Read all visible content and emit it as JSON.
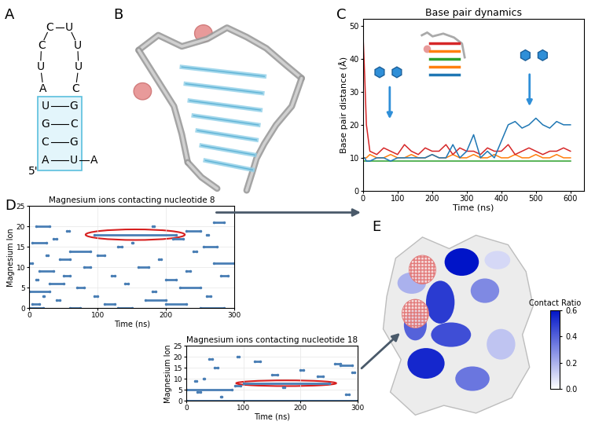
{
  "panel_labels": [
    "A",
    "B",
    "C",
    "D",
    "E"
  ],
  "secondary_structure": {
    "five_prime": "5'",
    "stem_left": [
      "A",
      "C",
      "G",
      "U"
    ],
    "loop": [
      "A",
      "U",
      "C",
      "C",
      "U",
      "U",
      "U",
      "C"
    ],
    "stem_right": [
      "G",
      "C",
      "G",
      "U"
    ],
    "tail": [
      "A"
    ]
  },
  "chart_data": [
    {
      "type": "line",
      "title": "Base pair dynamics",
      "xlabel": "Time (ns)",
      "ylabel": "Base pair distance (Å)",
      "x": [
        0,
        5,
        10,
        20,
        40,
        60,
        80,
        100,
        120,
        140,
        160,
        180,
        200,
        220,
        240,
        260,
        280,
        300,
        320,
        340,
        360,
        380,
        400,
        420,
        440,
        460,
        480,
        500,
        520,
        540,
        560,
        580,
        600
      ],
      "series": [
        {
          "color": "#2ca02c",
          "values": [
            9,
            9,
            9,
            9,
            9,
            9,
            9,
            9,
            9,
            9,
            9,
            9,
            9,
            9,
            9,
            9,
            9,
            9,
            9,
            9,
            9,
            9,
            9,
            9,
            9,
            9,
            9,
            9,
            9,
            9,
            9,
            9,
            9
          ]
        },
        {
          "color": "#ff7f0e",
          "values": [
            10,
            10,
            10,
            11,
            10,
            10,
            11,
            10,
            10,
            11,
            10,
            10,
            11,
            10,
            10,
            11,
            10,
            10,
            11,
            10,
            10,
            11,
            10,
            10,
            11,
            10,
            10,
            11,
            10,
            10,
            11,
            10,
            10
          ]
        },
        {
          "color": "#d62728",
          "values": [
            48,
            35,
            20,
            12,
            11,
            13,
            12,
            11,
            14,
            12,
            11,
            13,
            12,
            12,
            14,
            11,
            13,
            12,
            12,
            11,
            13,
            12,
            12,
            14,
            11,
            12,
            13,
            12,
            11,
            12,
            12,
            13,
            12
          ]
        },
        {
          "color": "#1f77b4",
          "values": [
            10,
            10,
            9,
            9,
            10,
            10,
            9,
            10,
            10,
            10,
            10,
            10,
            11,
            10,
            10,
            14,
            10,
            12,
            17,
            10,
            12,
            10,
            15,
            20,
            21,
            19,
            20,
            22,
            20,
            19,
            21,
            20,
            20
          ]
        }
      ],
      "xlim": [
        0,
        640
      ],
      "ylim": [
        0,
        52
      ],
      "xticks": [
        0,
        100,
        200,
        300,
        400,
        500,
        600
      ],
      "yticks": [
        0,
        10,
        20,
        30,
        40,
        50
      ]
    },
    {
      "type": "raster",
      "title": "Magnesium ions contacting nucleotide 8",
      "xlabel": "Time (ns)",
      "ylabel": "Magnesium Ion",
      "color": "#4a7fb5",
      "contacts": [
        [
          0,
          0,
          20
        ],
        [
          0,
          60,
          75
        ],
        [
          0,
          130,
          150
        ],
        [
          0,
          250,
          285
        ],
        [
          1,
          5,
          15
        ],
        [
          1,
          110,
          125
        ],
        [
          1,
          200,
          230
        ],
        [
          2,
          40,
          45
        ],
        [
          2,
          170,
          200
        ],
        [
          3,
          20,
          22
        ],
        [
          3,
          95,
          100
        ],
        [
          3,
          260,
          265
        ],
        [
          4,
          0,
          30
        ],
        [
          4,
          180,
          185
        ],
        [
          5,
          70,
          80
        ],
        [
          5,
          220,
          250
        ],
        [
          6,
          30,
          50
        ],
        [
          6,
          140,
          145
        ],
        [
          7,
          10,
          12
        ],
        [
          7,
          200,
          215
        ],
        [
          8,
          50,
          60
        ],
        [
          8,
          120,
          125
        ],
        [
          8,
          280,
          290
        ],
        [
          9,
          15,
          35
        ],
        [
          9,
          230,
          235
        ],
        [
          10,
          80,
          90
        ],
        [
          10,
          160,
          175
        ],
        [
          11,
          0,
          5
        ],
        [
          11,
          270,
          300
        ],
        [
          12,
          45,
          60
        ],
        [
          12,
          190,
          193
        ],
        [
          13,
          25,
          27
        ],
        [
          13,
          100,
          110
        ],
        [
          14,
          60,
          90
        ],
        [
          14,
          240,
          245
        ],
        [
          15,
          130,
          135
        ],
        [
          15,
          255,
          275
        ],
        [
          16,
          5,
          25
        ],
        [
          16,
          150,
          152
        ],
        [
          17,
          35,
          40
        ],
        [
          17,
          210,
          225
        ],
        [
          18,
          95,
          215
        ],
        [
          18,
          260,
          262
        ],
        [
          19,
          55,
          58
        ],
        [
          19,
          230,
          250
        ],
        [
          20,
          10,
          30
        ],
        [
          20,
          180,
          182
        ],
        [
          21,
          270,
          285
        ]
      ],
      "highlight": {
        "ion": 18,
        "start": 95,
        "end": 215
      },
      "xlim": [
        0,
        300
      ],
      "ylim": [
        0,
        25
      ],
      "xticks": [
        0,
        100,
        200,
        300
      ],
      "yticks": [
        0,
        5,
        10,
        15,
        20,
        25
      ]
    },
    {
      "type": "raster",
      "title": "Magnesium ions contacting nucleotide 18",
      "xlabel": "Time (ns)",
      "ylabel": "Magnesium Ion",
      "color": "#4a7fb5",
      "contacts": [
        [
          0,
          0,
          300
        ],
        [
          5,
          0,
          80
        ],
        [
          8,
          100,
          250
        ],
        [
          2,
          60,
          62
        ],
        [
          4,
          20,
          25
        ],
        [
          7,
          85,
          95
        ],
        [
          10,
          30,
          32
        ],
        [
          12,
          150,
          160
        ],
        [
          14,
          200,
          205
        ],
        [
          16,
          270,
          290
        ],
        [
          17,
          260,
          270
        ],
        [
          18,
          120,
          130
        ],
        [
          19,
          40,
          45
        ],
        [
          20,
          90,
          92
        ],
        [
          11,
          230,
          240
        ],
        [
          3,
          280,
          285
        ],
        [
          6,
          170,
          172
        ],
        [
          9,
          15,
          18
        ],
        [
          13,
          290,
          295
        ],
        [
          15,
          50,
          55
        ]
      ],
      "highlight": {
        "ion": 8,
        "start": 100,
        "end": 250
      },
      "xlim": [
        0,
        300
      ],
      "ylim": [
        0,
        25
      ],
      "xticks": [
        0,
        100,
        200,
        300
      ],
      "yticks": [
        0,
        5,
        10,
        15,
        20,
        25
      ]
    }
  ],
  "surface": {
    "patch_contact_ratios": [
      0.6,
      0.5,
      0.45,
      0.3,
      0.2,
      0.55,
      0.15,
      0.35,
      0.4,
      0.1
    ],
    "colorbar": {
      "label": "Contact Ratio",
      "range": [
        0,
        0.6
      ],
      "ticks": [
        {
          "value": 0,
          "label": "0.0"
        },
        0.2,
        0.4,
        0.6
      ]
    }
  }
}
